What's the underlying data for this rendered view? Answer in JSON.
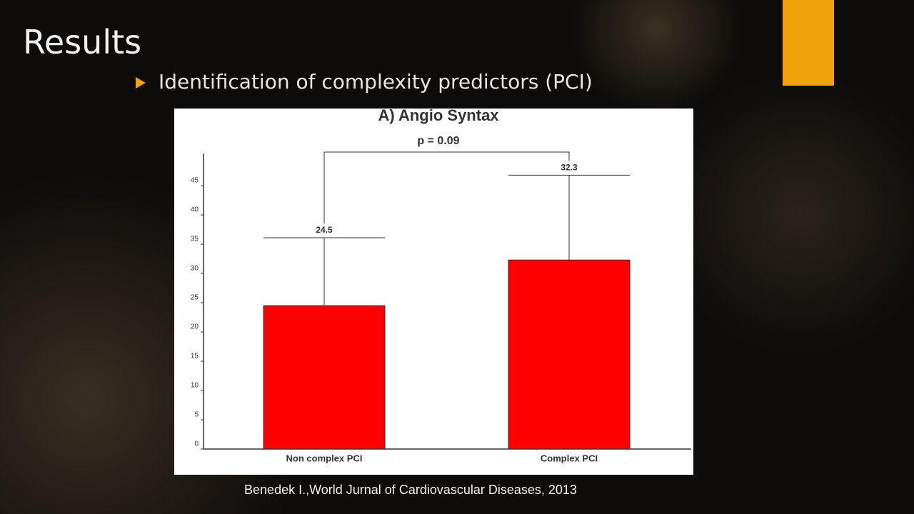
{
  "slide": {
    "title": "Results",
    "bullet": "Identification of complexity predictors (PCI)",
    "citation": "Benedek I.,World Jurnal of Cardiovascular Diseases, 2013"
  },
  "chart_data": {
    "type": "bar",
    "title": "A) Angio Syntax",
    "annotation": "p = 0.09",
    "categories": [
      "Non complex PCI",
      "Complex PCI"
    ],
    "values": [
      24.5,
      32.3
    ],
    "errors": [
      11.6,
      14.5
    ],
    "color": "#ff0000",
    "ylim": [
      0,
      50.5
    ],
    "yticks": [
      0,
      5,
      10,
      15,
      20,
      25,
      30,
      35,
      40,
      45
    ]
  }
}
